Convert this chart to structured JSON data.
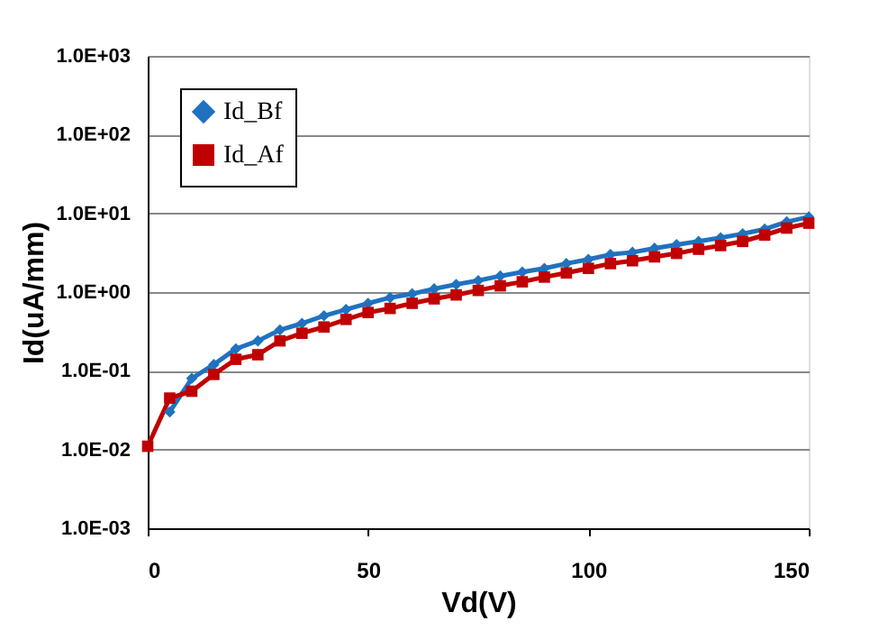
{
  "chart_data": {
    "type": "line",
    "xlabel": "Vd(V)",
    "ylabel": "Id(uA/mm)",
    "log": "y",
    "grid": "y",
    "legend": "top left",
    "marker": "diamond",
    "line_style": "solid",
    "x": [
      0,
      5,
      10,
      15,
      20,
      25,
      30,
      35,
      40,
      45,
      50,
      55,
      60,
      65,
      70,
      75,
      80,
      85,
      90,
      95,
      100,
      105,
      110,
      115,
      120,
      125,
      130,
      135,
      140,
      145,
      150
    ],
    "xlim": [
      0,
      150
    ],
    "xticks": [
      0,
      50,
      100,
      150
    ],
    "ylim": [
      0.001,
      1000
    ],
    "yticks": [
      {
        "value": 0.001,
        "label": "1.0E-03"
      },
      {
        "value": 0.01,
        "label": "1.0E-02"
      },
      {
        "value": 0.1,
        "label": "1.0E-01"
      },
      {
        "value": 1,
        "label": "1.0E+00"
      },
      {
        "value": 10,
        "label": "1.0E+01"
      },
      {
        "value": 100,
        "label": "1.0E+02"
      },
      {
        "value": 1000,
        "label": "1.0E+03"
      }
    ],
    "series": [
      {
        "name": "Id_Bf",
        "color": "#1f72c0",
        "marker": "diamond",
        "values": [
          null,
          0.03,
          0.08,
          0.12,
          0.19,
          0.24,
          0.33,
          0.4,
          0.5,
          0.6,
          0.72,
          0.85,
          0.95,
          1.1,
          1.25,
          1.4,
          1.6,
          1.8,
          2.0,
          2.3,
          2.6,
          3.0,
          3.2,
          3.6,
          4.0,
          4.4,
          4.9,
          5.5,
          6.3,
          7.8,
          9.0
        ]
      },
      {
        "name": "Id_Af",
        "color": "#c00000",
        "marker": "square",
        "values": [
          0.011,
          0.045,
          0.055,
          0.09,
          0.14,
          0.16,
          0.24,
          0.3,
          0.36,
          0.45,
          0.55,
          0.62,
          0.72,
          0.82,
          0.92,
          1.05,
          1.2,
          1.35,
          1.55,
          1.75,
          2.0,
          2.3,
          2.5,
          2.8,
          3.1,
          3.5,
          3.9,
          4.4,
          5.3,
          6.5,
          7.5
        ]
      }
    ]
  }
}
